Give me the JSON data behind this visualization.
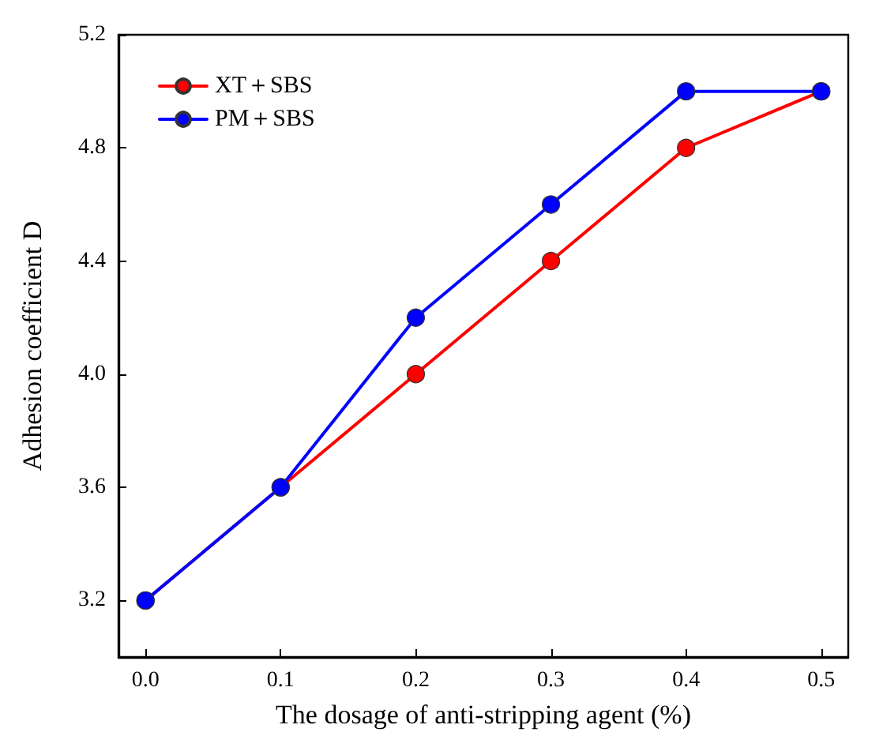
{
  "chart_data": {
    "type": "line",
    "xlabel": "The dosage of anti-stripping agent (%)",
    "ylabel": "Adhesion coefficient D",
    "x": [
      0.0,
      0.1,
      0.2,
      0.3,
      0.4,
      0.5
    ],
    "series": [
      {
        "name": "XT＋SBS",
        "color": "#ff0000",
        "values": [
          3.2,
          3.6,
          4.0,
          4.4,
          4.8,
          5.0
        ]
      },
      {
        "name": "PM＋SBS",
        "color": "#0000ff",
        "values": [
          3.2,
          3.6,
          4.2,
          4.6,
          5.0,
          5.0
        ]
      }
    ],
    "xlim": [
      -0.02,
      0.52
    ],
    "xticks": [
      {
        "value": 0,
        "label": "0.0"
      },
      0.1,
      0.2,
      0.3,
      0.4,
      0.5
    ],
    "ylim": [
      3.0,
      5.2
    ],
    "yticks": [
      3.2,
      3.6,
      {
        "value": 4,
        "label": "4.0"
      },
      4.4,
      4.8,
      5.2
    ],
    "grid": false,
    "legend": "top left",
    "marker": "circle",
    "line_style": "solid"
  }
}
